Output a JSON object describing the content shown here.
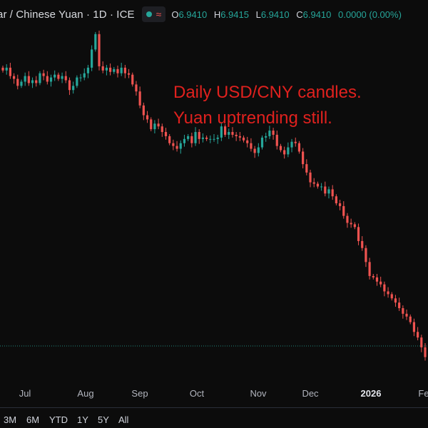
{
  "header": {
    "title": "ar / Chinese Yuan · 1D · ICE",
    "status_symbol": "≈",
    "ohlc": [
      {
        "key": "O",
        "value": "6.9410"
      },
      {
        "key": "H",
        "value": "6.9415"
      },
      {
        "key": "L",
        "value": "6.9410"
      },
      {
        "key": "C",
        "value": "6.9410"
      }
    ],
    "change": "0.0000 (0.00%)"
  },
  "annotation": {
    "line1": "Daily USD/CNY candles.",
    "line2": "Yuan uptrending still."
  },
  "xaxis": {
    "labels": [
      "Jul",
      "Aug",
      "Sep",
      "Oct",
      "Nov",
      "Dec",
      "2026",
      "Fe"
    ]
  },
  "timeframes": [
    "3M",
    "6M",
    "YTD",
    "1Y",
    "5Y",
    "All"
  ],
  "colors": {
    "up": "#26a69a",
    "down": "#ef5350",
    "annotation": "#e0211e",
    "background": "#0c0c0c"
  },
  "chart_data": {
    "type": "candlestick",
    "title": "",
    "series": [
      {
        "values": [
          7.18,
          7.182,
          7.176,
          7.174,
          7.169,
          7.172,
          7.176,
          7.171,
          7.173,
          7.171,
          7.178,
          7.176,
          7.172,
          7.175,
          7.177,
          7.174,
          7.176,
          7.173,
          7.166,
          7.169,
          7.175,
          7.175,
          7.178,
          7.182,
          7.195,
          7.206,
          7.183,
          7.18,
          7.182,
          7.179,
          7.181,
          7.178,
          7.182,
          7.178,
          7.177,
          7.17,
          7.165,
          7.155,
          7.148,
          7.145,
          7.138,
          7.142,
          7.14,
          7.136,
          7.133,
          7.128,
          7.126,
          7.124,
          7.128,
          7.131,
          7.133,
          7.128,
          7.136,
          7.131,
          7.132,
          7.131,
          7.131,
          7.131,
          7.132,
          7.14,
          7.134,
          7.136,
          7.134,
          7.133,
          7.132,
          7.13,
          7.128,
          7.124,
          7.121,
          7.125,
          7.132,
          7.133,
          7.137,
          7.134,
          7.126,
          7.123,
          7.12,
          7.125,
          7.129,
          7.128,
          7.122,
          7.113,
          7.107,
          7.1,
          7.099,
          7.097,
          7.097,
          7.092,
          7.095,
          7.09,
          7.085,
          7.083,
          7.076,
          7.071,
          7.07,
          7.068,
          7.058,
          7.053,
          7.043,
          7.033,
          7.032,
          7.029,
          7.027,
          7.022,
          7.02,
          7.017,
          7.014,
          7.01,
          7.006,
          7.004,
          7.0,
          6.993,
          6.989,
          6.982,
          6.975
        ]
      }
    ],
    "x_labels": [
      "Jul",
      "Aug",
      "Sep",
      "Oct",
      "Nov",
      "Dec",
      "2026",
      "Fe"
    ],
    "ylim": [
      6.96,
      7.21
    ],
    "last_price": 6.941,
    "grid": false
  }
}
